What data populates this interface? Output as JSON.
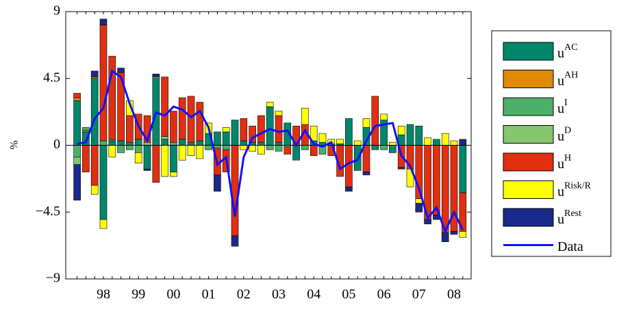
{
  "chart_data": {
    "type": "bar",
    "stacked": true,
    "ylabel": "%",
    "categories": [
      null,
      null,
      null,
      "98",
      null,
      null,
      null,
      "99",
      null,
      null,
      null,
      "00",
      null,
      null,
      null,
      "01",
      null,
      null,
      null,
      "02",
      null,
      null,
      null,
      "03",
      null,
      null,
      null,
      "04",
      null,
      null,
      null,
      "05",
      null,
      null,
      null,
      "06",
      null,
      null,
      null,
      "07",
      null,
      null,
      null,
      "08",
      null
    ],
    "ylim": [
      -9,
      9
    ],
    "yticks": [
      {
        "value": -9,
        "label": "−9"
      },
      {
        "value": -4.5,
        "label": "−4.5"
      },
      0,
      4.5,
      9
    ],
    "legend": "outside-right",
    "series": [
      {
        "name": "uAC",
        "color": "#00876a",
        "values": [
          3.0,
          0.9,
          4.5,
          -5.0,
          0.3,
          0.3,
          0.2,
          0.4,
          -1.6,
          4.5,
          0.4,
          -1.8,
          0.4,
          0.2,
          0.3,
          0.8,
          0.9,
          0.9,
          1.7,
          0.3,
          0.2,
          0.2,
          2.6,
          0.2,
          1.5,
          -1.0,
          0,
          0.3,
          0.2,
          0.1,
          0.1,
          1.8,
          -1.7,
          1.2,
          -0.3,
          1.7,
          -0.5,
          0.7,
          1.4,
          1.3,
          0,
          0.4,
          0,
          0,
          -3.2
        ]
      },
      {
        "name": "uAH",
        "color": "#e08a00",
        "values": [
          0.2,
          0.1,
          0.1,
          0,
          0,
          0,
          0,
          0,
          0,
          0,
          0,
          0,
          0,
          0,
          0,
          0,
          0,
          0,
          0,
          0,
          0,
          0,
          0,
          0,
          0,
          0,
          0,
          0,
          0,
          0,
          0,
          0,
          0,
          0,
          0,
          0,
          0,
          0,
          0,
          0,
          0,
          0,
          0,
          0,
          0
        ]
      },
      {
        "name": "uI",
        "color": "#4caf6a",
        "values": [
          -0.8,
          0.2,
          0,
          0.3,
          0.1,
          -0.5,
          -0.3,
          -0.5,
          0,
          0,
          0,
          0.2,
          0,
          0,
          0,
          -0.3,
          -0.2,
          -0.3,
          0,
          0,
          0,
          0,
          -0.3,
          -0.4,
          0,
          0,
          -0.3,
          0,
          -0.6,
          0,
          0,
          0,
          0,
          0,
          0,
          -0.3,
          0,
          0,
          0,
          0,
          0,
          0,
          0,
          0,
          0
        ]
      },
      {
        "name": "uD",
        "color": "#86c66e",
        "values": [
          -0.5,
          0,
          0,
          0,
          0,
          0,
          0,
          0,
          0.2,
          0.1,
          0.2,
          0,
          0,
          0,
          0,
          0,
          0,
          0,
          0,
          0,
          0,
          0,
          0,
          0,
          -0.1,
          0,
          0,
          0,
          0,
          0,
          0,
          0,
          0,
          0,
          0,
          0,
          0,
          0,
          0,
          0,
          0,
          0,
          0,
          0,
          0
        ]
      },
      {
        "name": "uH",
        "color": "#e03010",
        "values": [
          0.3,
          -1.8,
          -2.7,
          7.8,
          5.6,
          4.6,
          1.8,
          1.7,
          1.8,
          -2.5,
          4.0,
          2.1,
          2.8,
          3.1,
          2.6,
          0,
          -1.8,
          -1.5,
          -6.1,
          1.5,
          1.1,
          1.8,
          0,
          1.8,
          -0.5,
          1.3,
          1.4,
          -0.7,
          0,
          -0.7,
          -2.1,
          -2.8,
          0,
          -1.8,
          3.3,
          0,
          0,
          -1.5,
          -1.6,
          -3.6,
          -5.0,
          -4.7,
          -5.9,
          -5.8,
          -2.6
        ]
      },
      {
        "name": "uRisk/R",
        "color": "#ffff00",
        "values": [
          0,
          0,
          -0.6,
          -0.6,
          -0.8,
          0,
          1.0,
          -0.7,
          0,
          0,
          -2.1,
          -0.3,
          -1.0,
          -0.7,
          -0.9,
          0.7,
          0,
          0.3,
          0,
          -0.3,
          -0.4,
          -0.6,
          0.3,
          0.3,
          0,
          0,
          1.1,
          1.0,
          0.6,
          0.3,
          0.3,
          0,
          0.3,
          0.6,
          0,
          0.4,
          0.2,
          0.6,
          -1.2,
          -0.3,
          0.5,
          0,
          0.8,
          0.3,
          -0.4
        ]
      },
      {
        "name": "uRest",
        "color": "#1a2a8a",
        "values": [
          -2.4,
          0,
          0.4,
          0.4,
          0,
          0.3,
          0,
          0,
          -0.1,
          0.2,
          0,
          0,
          0,
          0,
          0,
          0,
          -1.1,
          0,
          -0.7,
          0,
          0,
          0,
          0,
          0,
          0,
          0,
          0,
          0,
          0,
          0,
          0,
          -0.3,
          0,
          -0.2,
          0,
          0,
          0,
          -0.1,
          0,
          -0.6,
          -0.3,
          -0.3,
          -0.6,
          -0.2,
          0.4
        ]
      },
      {
        "name": "Data",
        "color": "#1010ff",
        "type": "line",
        "values": [
          0.1,
          0.2,
          1.8,
          2.5,
          5.0,
          4.6,
          2.8,
          1.3,
          0.3,
          2.2,
          2.0,
          2.6,
          2.4,
          1.9,
          2.3,
          1.2,
          -1.3,
          -0.8,
          -4.8,
          -0.8,
          0.5,
          0.8,
          1.1,
          0.9,
          1.0,
          0.0,
          1.0,
          0.1,
          -0.1,
          0.2,
          -1.6,
          -1.2,
          -1.0,
          0.3,
          1.3,
          1.4,
          1.5,
          -0.7,
          -1.4,
          -2.9,
          -4.9,
          -4.2,
          -5.8,
          -4.5,
          -5.7
        ]
      }
    ]
  }
}
